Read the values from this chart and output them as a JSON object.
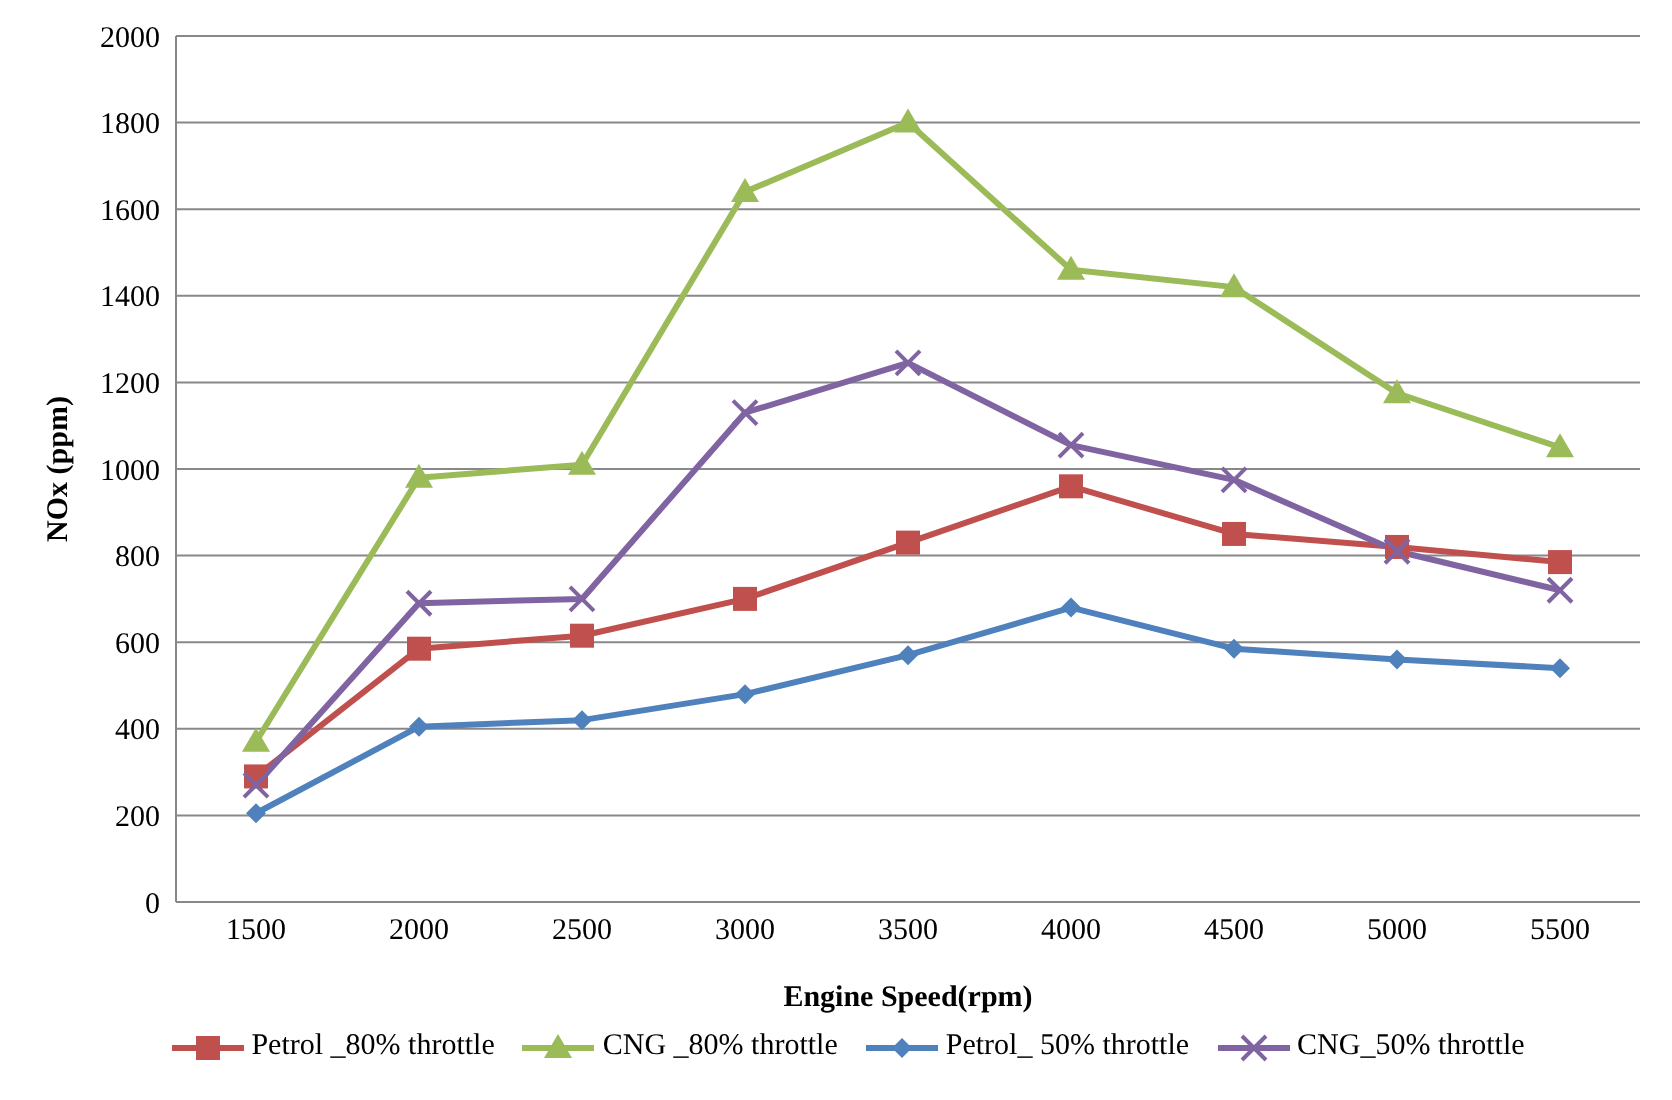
{
  "chart_data": {
    "type": "line",
    "xlabel": "Engine Speed(rpm)",
    "ylabel": "NOx (ppm)",
    "categories": [
      "1500",
      "2000",
      "2500",
      "3000",
      "3500",
      "4000",
      "4500",
      "5000",
      "5500"
    ],
    "ylim": [
      0,
      2000
    ],
    "yticks": [
      0,
      200,
      400,
      600,
      800,
      1000,
      1200,
      1400,
      1600,
      1800,
      2000
    ],
    "grid": "y",
    "legend": "bottom",
    "series": [
      {
        "name": "Petrol _80% throttle",
        "color": "#c0504d",
        "marker": "square",
        "values": [
          290,
          585,
          615,
          700,
          830,
          960,
          850,
          820,
          785
        ]
      },
      {
        "name": "CNG _80% throttle",
        "color": "#9bbb59",
        "marker": "triangle",
        "values": [
          370,
          980,
          1010,
          1640,
          1800,
          1460,
          1420,
          1175,
          1050
        ]
      },
      {
        "name": "Petrol_ 50% throttle",
        "color": "#4f81bd",
        "marker": "diamond",
        "values": [
          205,
          405,
          420,
          480,
          570,
          680,
          585,
          560,
          540
        ]
      },
      {
        "name": "CNG_50% throttle",
        "color": "#8064a2",
        "marker": "cross",
        "values": [
          270,
          690,
          700,
          1130,
          1245,
          1055,
          975,
          810,
          720
        ]
      }
    ]
  }
}
